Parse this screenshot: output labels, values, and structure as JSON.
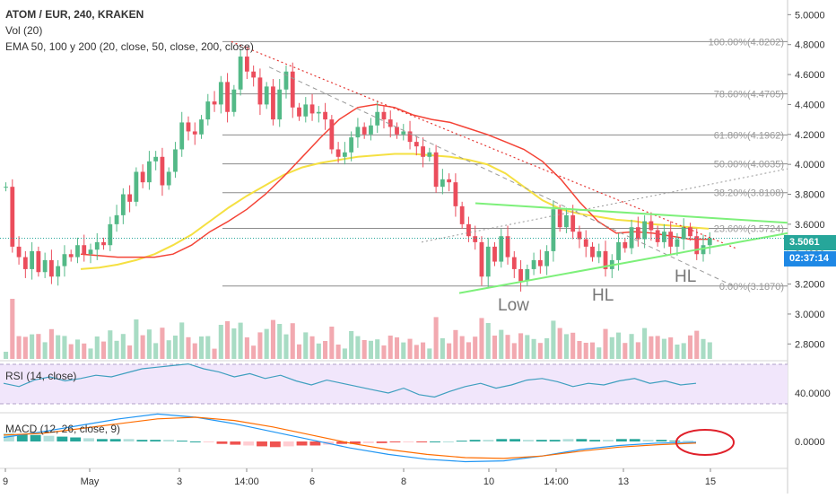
{
  "header": {
    "symbol": "ATOM / EUR, 240, KRAKEN",
    "vol": "Vol (20)",
    "ema": "EMA 50, 100 y 200 (20, close, 50, close, 200, close)"
  },
  "panes": {
    "rsi_label": "RSI (14, close)",
    "macd_label": "MACD (12, 26, close, 9)"
  },
  "price_tag": {
    "value": "3.5061",
    "countdown": "02:37:14"
  },
  "colors": {
    "up": "#53b987",
    "down": "#eb4d5c",
    "ema_fast": "#f44336",
    "ema_slow": "#f5e042",
    "trend_red": "#e53935",
    "triangle": "#7df07a",
    "fib": "#8c8c8c",
    "rsi": "#3f9fbf",
    "rsi_bg": "#f1e6fb",
    "macd": "#2196f3",
    "signal": "#ff6d00",
    "circle": "#e0202a"
  },
  "annotations": [
    "Low",
    "HL",
    "HL"
  ],
  "chart_data": [
    {
      "type": "candlestick",
      "title": "ATOM / EUR, 240, KRAKEN",
      "ylim": [
        2.7,
        5.05
      ],
      "y_ticks": [
        "5.0000",
        "4.8000",
        "4.6000",
        "4.4000",
        "4.2000",
        "4.0000",
        "3.8000",
        "3.6000",
        "3.4000",
        "3.2000",
        "3.0000",
        "2.8000"
      ],
      "x_ticks": [
        "9",
        "May",
        "3",
        "14:00",
        "6",
        "8",
        "10",
        "14:00",
        "13",
        "15"
      ],
      "fib_levels": [
        {
          "label": "100.00%(4.8202)",
          "value": 4.8202
        },
        {
          "label": "78.60%(4.4705)",
          "value": 4.4705
        },
        {
          "label": "61.80%(4.1962)",
          "value": 4.1962
        },
        {
          "label": "50.00%(4.0035)",
          "value": 4.0035
        },
        {
          "label": "38.20%(3.8108)",
          "value": 3.8108
        },
        {
          "label": "23.60%(3.5724)",
          "value": 3.5724
        },
        {
          "label": "0.00%(3.1870)",
          "value": 3.187
        }
      ],
      "last_price": 3.5061,
      "closes": [
        3.85,
        3.45,
        3.38,
        3.3,
        3.42,
        3.28,
        3.36,
        3.25,
        3.32,
        3.4,
        3.38,
        3.46,
        3.4,
        3.43,
        3.48,
        3.46,
        3.6,
        3.66,
        3.8,
        3.75,
        3.95,
        3.88,
        4.02,
        4.05,
        3.86,
        3.95,
        4.1,
        4.28,
        4.22,
        4.2,
        4.3,
        4.42,
        4.4,
        4.55,
        4.35,
        4.5,
        4.72,
        4.62,
        4.58,
        4.4,
        4.52,
        4.3,
        4.5,
        4.62,
        4.38,
        4.32,
        4.4,
        4.34,
        4.35,
        4.3,
        4.1,
        4.05,
        4.08,
        4.18,
        4.25,
        4.2,
        4.26,
        4.35,
        4.3,
        4.25,
        4.2,
        4.22,
        4.15,
        4.12,
        4.05,
        4.08,
        3.85,
        3.9,
        3.88,
        3.72,
        3.6,
        3.52,
        3.48,
        3.25,
        3.45,
        3.35,
        3.52,
        3.38,
        3.3,
        3.22,
        3.3,
        3.36,
        3.32,
        3.42,
        3.7,
        3.58,
        3.66,
        3.55,
        3.5,
        3.45,
        3.38,
        3.42,
        3.3,
        3.36,
        3.48,
        3.44,
        3.58,
        3.5,
        3.62,
        3.56,
        3.48,
        3.55,
        3.45,
        3.5,
        3.58,
        3.52,
        3.4,
        3.46,
        3.5061
      ],
      "ema_fast": [
        3.4,
        3.39,
        3.38,
        3.38,
        3.38,
        3.4,
        3.46,
        3.55,
        3.62,
        3.7,
        3.8,
        3.92,
        4.05,
        4.18,
        4.3,
        4.38,
        4.4,
        4.38,
        4.33,
        4.3,
        4.28,
        4.24,
        4.2,
        4.15,
        4.1,
        4.02,
        3.9,
        3.75,
        3.62,
        3.54,
        3.55,
        3.54,
        3.52,
        3.5,
        3.5
      ],
      "ema_slow": [
        3.3,
        3.31,
        3.33,
        3.36,
        3.4,
        3.46,
        3.53,
        3.62,
        3.71,
        3.79,
        3.86,
        3.93,
        3.98,
        4.01,
        4.03,
        4.05,
        4.06,
        4.07,
        4.07,
        4.06,
        4.05,
        4.03,
        4.0,
        3.94,
        3.85,
        3.76,
        3.7,
        3.67,
        3.65,
        3.63,
        3.62,
        3.6,
        3.59,
        3.58,
        3.57
      ]
    },
    {
      "type": "line",
      "title": "RSI (14, close)",
      "ylim": [
        20,
        80
      ],
      "y_ticks": [
        "40.0000"
      ],
      "values": [
        52,
        48,
        56,
        60,
        55,
        58,
        62,
        60,
        65,
        70,
        72,
        74,
        76,
        70,
        66,
        60,
        64,
        58,
        62,
        55,
        50,
        56,
        52,
        48,
        44,
        40,
        46,
        38,
        35,
        42,
        48,
        52,
        46,
        50,
        56,
        58,
        54,
        48,
        52,
        50,
        55,
        58,
        52,
        55,
        50,
        52
      ]
    },
    {
      "type": "bar",
      "title": "MACD (12, 26, close, 9)",
      "y_ticks": [
        "0.0000"
      ],
      "histogram": [
        0.1,
        0.09,
        0.08,
        0.07,
        0.06,
        0.05,
        0.04,
        0.03,
        0.03,
        0.03,
        0.02,
        0.02,
        0.02,
        0.01,
        0.0,
        -0.01,
        -0.03,
        -0.04,
        -0.05,
        -0.06,
        -0.07,
        -0.06,
        -0.05,
        -0.05,
        -0.04,
        -0.03,
        -0.03,
        -0.02,
        -0.02,
        -0.01,
        -0.01,
        -0.01,
        0.0,
        0.0,
        0.01,
        0.02,
        0.02,
        0.03,
        0.03,
        0.02,
        0.02,
        0.02,
        0.03,
        0.03,
        0.02,
        0.02,
        0.03,
        0.03,
        0.02,
        0.02,
        0.01,
        0.01
      ],
      "macd": [
        0.05,
        0.12,
        0.2,
        0.28,
        0.34,
        0.3,
        0.22,
        0.12,
        0.02,
        -0.08,
        -0.16,
        -0.22,
        -0.25,
        -0.24,
        -0.18,
        -0.1,
        -0.05,
        -0.02,
        -0.01
      ],
      "signal": [
        0.08,
        0.1,
        0.16,
        0.22,
        0.28,
        0.3,
        0.26,
        0.18,
        0.08,
        -0.02,
        -0.1,
        -0.16,
        -0.2,
        -0.21,
        -0.18,
        -0.12,
        -0.07,
        -0.04,
        -0.02
      ]
    }
  ]
}
